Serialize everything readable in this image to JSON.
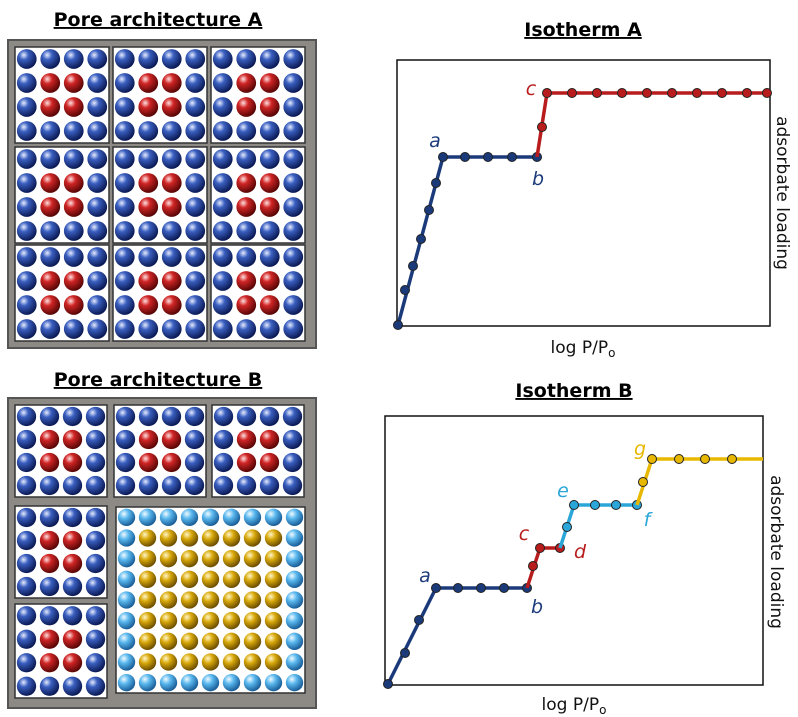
{
  "pore_a": {
    "title": "Pore architecture A"
  },
  "pore_b": {
    "title": "Pore architecture B"
  },
  "isotherm_a": {
    "title": "Isotherm A",
    "x_label": "log P/P",
    "x_label_sub": "o",
    "y_label": "adsorbate loading",
    "point_labels": [
      "a",
      "b",
      "c"
    ]
  },
  "isotherm_b": {
    "title": "Isotherm B",
    "x_label": "log P/P",
    "x_label_sub": "o",
    "y_label": "adsorbate loading",
    "point_labels": [
      "a",
      "b",
      "c",
      "d",
      "e",
      "f",
      "g"
    ]
  }
}
